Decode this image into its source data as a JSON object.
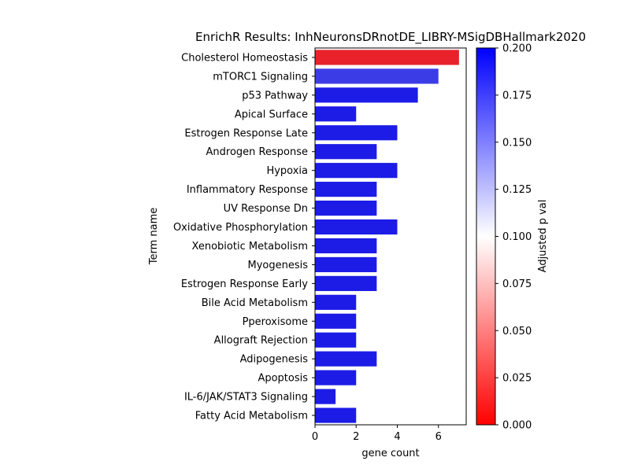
{
  "chart_data": {
    "type": "bar",
    "orientation": "horizontal",
    "title": "EnrichR Results: InhNeuronsDRnotDE_LIBRY-MSigDBHallmark2020",
    "xlabel": "gene count",
    "ylabel": "Term name",
    "xlim": [
      0,
      7.35
    ],
    "xticks": [
      "0",
      "2",
      "4",
      "6"
    ],
    "categories": [
      "Cholesterol Homeostasis",
      "mTORC1 Signaling",
      "p53 Pathway",
      "Apical Surface",
      "Estrogen Response Late",
      "Androgen Response",
      "Hypoxia",
      "Inflammatory Response",
      "UV Response Dn",
      "Oxidative Phosphorylation",
      "Xenobiotic Metabolism",
      "Myogenesis",
      "Estrogen Response Early",
      "Bile Acid Metabolism",
      "Pperoxisome",
      "Allograft Rejection",
      "Adipogenesis",
      "Apoptosis",
      "IL-6/JAK/STAT3 Signaling",
      "Fatty Acid Metabolism"
    ],
    "values": [
      7,
      6,
      5,
      2,
      4,
      3,
      4,
      3,
      3,
      4,
      3,
      3,
      3,
      2,
      2,
      2,
      3,
      2,
      1,
      2
    ],
    "adjusted_p": [
      0.01,
      0.168,
      0.19,
      0.19,
      0.19,
      0.19,
      0.19,
      0.19,
      0.19,
      0.19,
      0.19,
      0.19,
      0.19,
      0.19,
      0.19,
      0.19,
      0.19,
      0.19,
      0.19,
      0.19
    ],
    "colorbar": {
      "label": "Adjusted p val",
      "range": [
        0.0,
        0.2
      ],
      "ticks": [
        "0.000",
        "0.025",
        "0.050",
        "0.075",
        "0.100",
        "0.125",
        "0.150",
        "0.175",
        "0.200"
      ],
      "colors": [
        "#ff0000",
        "#ffffff",
        "#0000ff"
      ]
    },
    "legend": "none",
    "grid": false
  }
}
